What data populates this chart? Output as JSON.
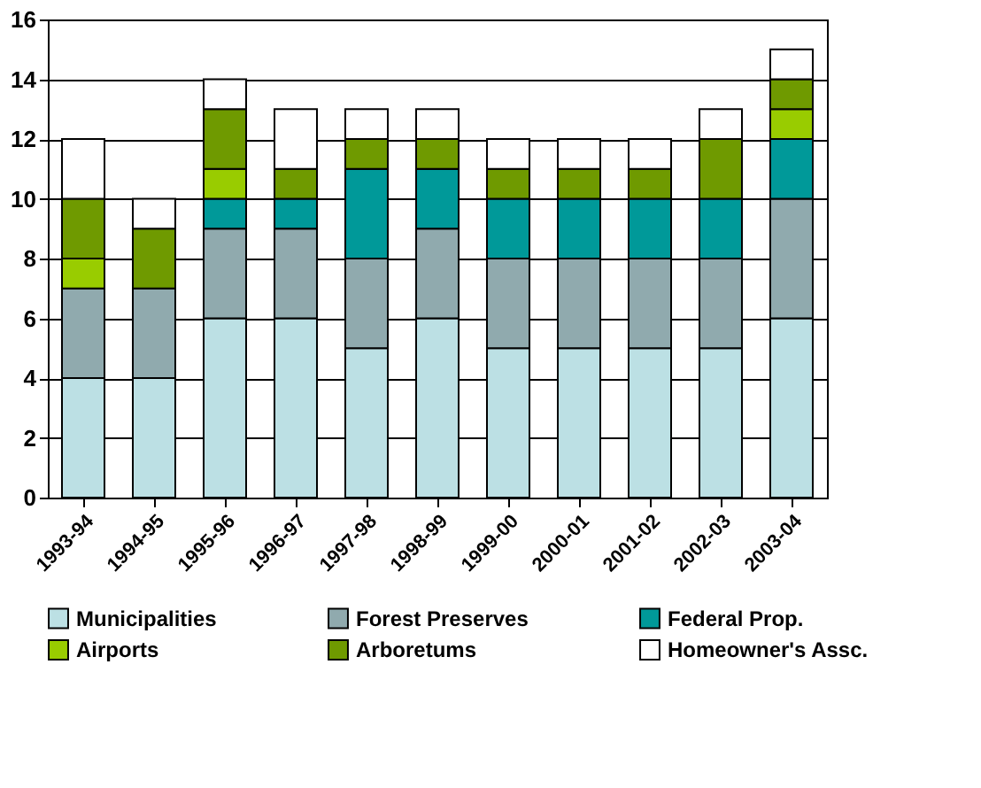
{
  "chart_data": {
    "type": "bar",
    "stacked": true,
    "categories": [
      "1993-94",
      "1994-95",
      "1995-96",
      "1996-97",
      "1997-98",
      "1998-99",
      "1999-00",
      "2000-01",
      "2001-02",
      "2002-03",
      "2003-04"
    ],
    "series": [
      {
        "name": "Municipalities",
        "color": "#bce0e4",
        "values": [
          4,
          4,
          6,
          6,
          5,
          6,
          5,
          5,
          5,
          5,
          6
        ]
      },
      {
        "name": "Forest Preserves",
        "color": "#90aaae",
        "values": [
          3,
          3,
          3,
          3,
          3,
          3,
          3,
          3,
          3,
          3,
          4
        ]
      },
      {
        "name": "Federal Prop.",
        "color": "#009999",
        "values": [
          0,
          0,
          1,
          1,
          3,
          2,
          2,
          2,
          2,
          2,
          2
        ]
      },
      {
        "name": "Airports",
        "color": "#99cc00",
        "values": [
          1,
          0,
          1,
          0,
          0,
          0,
          0,
          0,
          0,
          0,
          1
        ]
      },
      {
        "name": "Arboretums",
        "color": "#6f9a00",
        "values": [
          2,
          2,
          2,
          1,
          1,
          1,
          1,
          1,
          1,
          2,
          1
        ]
      },
      {
        "name": "Homeowner's Assc.",
        "color": "#ffffff",
        "values": [
          2,
          1,
          1,
          2,
          1,
          1,
          1,
          1,
          1,
          1,
          1
        ]
      }
    ],
    "ylim": [
      0,
      16
    ],
    "yticks": [
      0,
      2,
      4,
      6,
      8,
      10,
      12,
      14,
      16
    ],
    "grid": "y",
    "legend": "bottom"
  }
}
